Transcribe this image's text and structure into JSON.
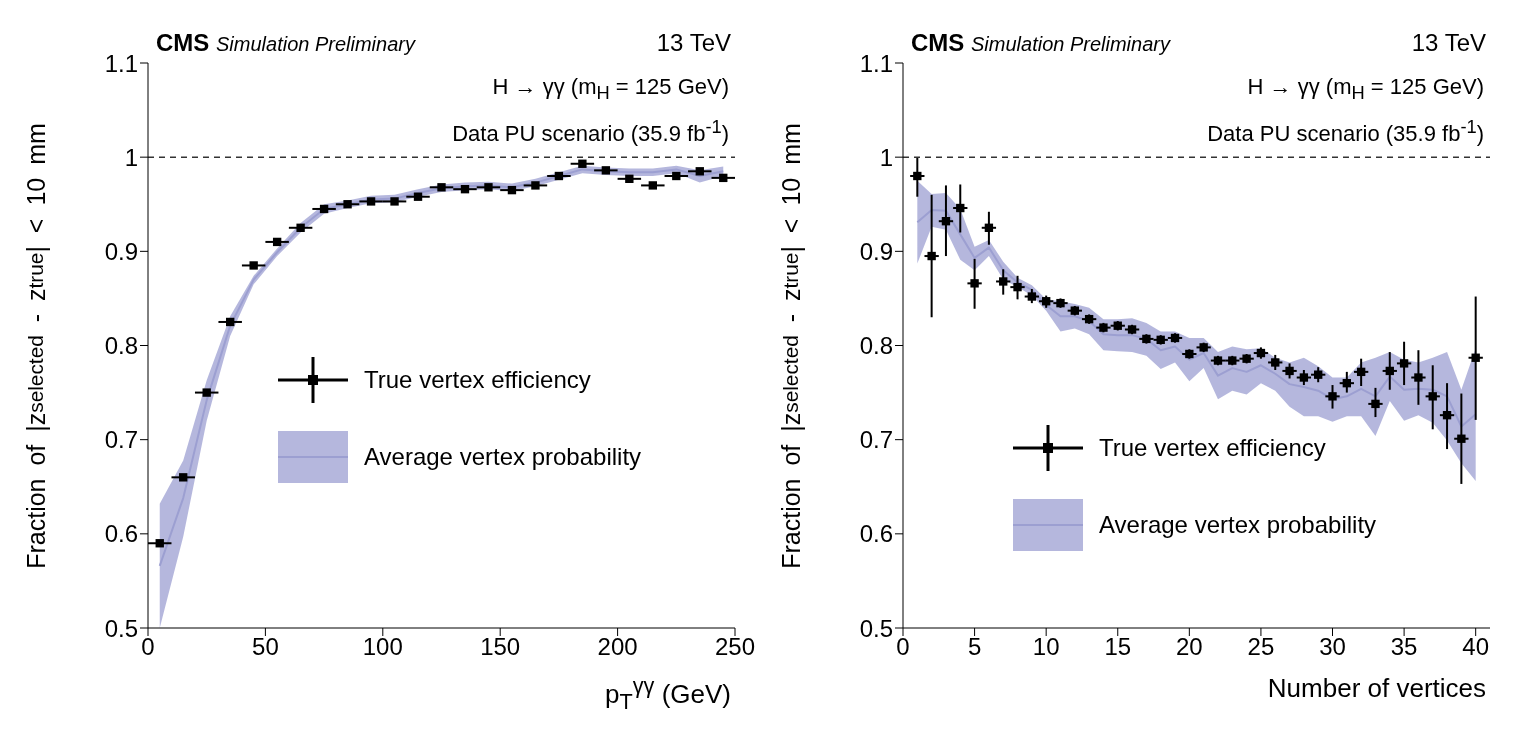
{
  "chart_data": [
    {
      "type": "scatter",
      "title": "CMS",
      "subtitle": "Simulation Preliminary",
      "xlabel": "p$_{T}$$^{γγ}$ (GeV)",
      "ylabel": "Fraction of |z$_{selected}$ - z$_{true}$| < 10 mm",
      "annotations": [
        "13 TeV",
        "H → γγ (m$_{H}$ = 125 GeV)",
        "Data PU scenario (35.9 fb$^{-1}$)"
      ],
      "x": [
        5,
        15,
        25,
        35,
        45,
        55,
        65,
        75,
        85,
        95,
        105,
        115,
        125,
        135,
        145,
        155,
        165,
        175,
        185,
        195,
        205,
        215,
        225,
        235,
        245
      ],
      "series": [
        {
          "name": "True vertex efficiency",
          "color": "#000000",
          "marker": "square",
          "values": [
            0.59,
            0.66,
            0.75,
            0.825,
            0.885,
            0.91,
            0.925,
            0.945,
            0.95,
            0.953,
            0.953,
            0.958,
            0.968,
            0.966,
            0.968,
            0.965,
            0.97,
            0.98,
            0.993,
            0.986,
            0.977,
            0.97,
            0.98,
            0.985,
            0.978
          ],
          "xerrors": [
            5,
            5,
            5,
            5,
            5,
            5,
            5,
            5,
            5,
            5,
            5,
            5,
            5,
            5,
            5,
            5,
            5,
            5,
            5,
            5,
            5,
            5,
            5,
            5,
            5
          ]
        },
        {
          "name": "Average vertex probability",
          "type": "line",
          "marker": "none",
          "color": "#9c9fd1",
          "values": [
            0.566,
            0.638,
            0.742,
            0.821,
            0.87,
            0.899,
            0.925,
            0.945,
            0.95,
            0.955,
            0.956,
            0.962,
            0.967,
            0.969,
            0.97,
            0.968,
            0.973,
            0.98,
            0.987,
            0.985,
            0.984,
            0.984,
            0.987,
            0.98,
            0.985
          ],
          "lower": [
            0.5,
            0.597,
            0.72,
            0.81,
            0.865,
            0.895,
            0.92,
            0.94,
            0.946,
            0.951,
            0.952,
            0.958,
            0.963,
            0.965,
            0.966,
            0.964,
            0.969,
            0.976,
            0.983,
            0.981,
            0.98,
            0.98,
            0.983,
            0.973,
            0.98
          ],
          "upper": [
            0.632,
            0.678,
            0.763,
            0.831,
            0.874,
            0.903,
            0.93,
            0.95,
            0.954,
            0.959,
            0.96,
            0.966,
            0.971,
            0.973,
            0.974,
            0.972,
            0.977,
            0.984,
            0.991,
            0.989,
            0.988,
            0.988,
            0.991,
            0.986,
            0.99
          ]
        }
      ],
      "xlim": [
        0,
        250
      ],
      "xticks": [
        0,
        50,
        100,
        150,
        200,
        250
      ],
      "ylim": [
        0.5,
        1.1
      ],
      "yticks": [
        0.5,
        0.6,
        0.7,
        0.8,
        0.9,
        1,
        1.1
      ],
      "ref_lines": [
        {
          "axis": "y",
          "value": 1,
          "line_style": "dashed",
          "color": "#333333"
        }
      ],
      "grid": false,
      "legend": "center"
    },
    {
      "type": "scatter",
      "title": "CMS",
      "subtitle": "Simulation Preliminary",
      "xlabel": "Number of vertices",
      "ylabel": "Fraction of |z$_{selected}$ - z$_{true}$| < 10 mm",
      "annotations": [
        "13 TeV",
        "H → γγ (m$_{H}$ = 125 GeV)",
        "Data PU scenario (35.9 fb$^{-1}$)"
      ],
      "x": [
        1,
        2,
        3,
        4,
        5,
        6,
        7,
        8,
        9,
        10,
        11,
        12,
        13,
        14,
        15,
        16,
        17,
        18,
        19,
        20,
        21,
        22,
        23,
        24,
        25,
        26,
        27,
        28,
        29,
        30,
        31,
        32,
        33,
        34,
        35,
        36,
        37,
        38,
        39,
        40
      ],
      "series": [
        {
          "name": "True vertex efficiency",
          "color": "#000000",
          "marker": "square",
          "values": [
            0.98,
            0.895,
            0.932,
            0.946,
            0.866,
            0.925,
            0.868,
            0.862,
            0.852,
            0.847,
            0.845,
            0.837,
            0.828,
            0.819,
            0.821,
            0.817,
            0.807,
            0.806,
            0.808,
            0.791,
            0.798,
            0.784,
            0.784,
            0.786,
            0.792,
            0.782,
            0.773,
            0.766,
            0.769,
            0.746,
            0.76,
            0.772,
            0.738,
            0.773,
            0.781,
            0.766,
            0.746,
            0.726,
            0.701,
            0.787
          ],
          "errors": [
            [
              0.958,
              1.0
            ],
            [
              0.83,
              0.96
            ],
            [
              0.895,
              0.97
            ],
            [
              0.92,
              0.971
            ],
            [
              0.839,
              0.892
            ],
            [
              0.907,
              0.942
            ],
            [
              0.854,
              0.881
            ],
            [
              0.849,
              0.874
            ],
            [
              0.845,
              0.86
            ],
            [
              0.84,
              0.853
            ],
            0.005,
            0.005,
            0.005,
            0.005,
            0.005,
            0.005,
            0.005,
            0.005,
            0.005,
            0.005,
            0.005,
            0.005,
            0.005,
            0.005,
            0.006,
            0.008,
            0.008,
            0.008,
            0.008,
            [
              0.733,
              0.758
            ],
            [
              0.75,
              0.772
            ],
            [
              0.757,
              0.786
            ],
            [
              0.724,
              0.755
            ],
            [
              0.753,
              0.793
            ],
            [
              0.758,
              0.804
            ],
            [
              0.737,
              0.795
            ],
            [
              0.711,
              0.779
            ],
            [
              0.69,
              0.76
            ],
            [
              0.653,
              0.749
            ],
            [
              0.721,
              0.852
            ]
          ],
          "xerrors": [
            0.5,
            0.5,
            0.5,
            0.5,
            0.5,
            0.5,
            0.5,
            0.5,
            0.5,
            0.5,
            0.5,
            0.5,
            0.5,
            0.5,
            0.5,
            0.5,
            0.5,
            0.5,
            0.5,
            0.5,
            0.5,
            0.5,
            0.5,
            0.5,
            0.5,
            0.5,
            0.5,
            0.5,
            0.5,
            0.5,
            0.5,
            0.5,
            0.5,
            0.5,
            0.5,
            0.5,
            0.5,
            0.5,
            0.5,
            0.5
          ]
        },
        {
          "name": "Average vertex probability",
          "type": "line",
          "marker": "none",
          "color": "#9c9fd1",
          "values": [
            0.931,
            0.944,
            0.943,
            0.918,
            0.893,
            0.904,
            0.88,
            0.867,
            0.859,
            0.843,
            0.831,
            0.831,
            0.826,
            0.812,
            0.811,
            0.811,
            0.807,
            0.795,
            0.799,
            0.785,
            0.792,
            0.768,
            0.776,
            0.772,
            0.779,
            0.77,
            0.759,
            0.756,
            0.752,
            0.743,
            0.746,
            0.754,
            0.746,
            0.767,
            0.753,
            0.754,
            0.753,
            0.746,
            0.714,
            0.727
          ],
          "lower": [
            0.887,
            0.926,
            0.923,
            0.891,
            0.88,
            0.895,
            0.87,
            0.862,
            0.853,
            0.837,
            0.815,
            0.818,
            0.812,
            0.795,
            0.794,
            0.793,
            0.789,
            0.775,
            0.782,
            0.762,
            0.776,
            0.743,
            0.752,
            0.748,
            0.76,
            0.752,
            0.735,
            0.725,
            0.725,
            0.719,
            0.725,
            0.725,
            0.704,
            0.741,
            0.72,
            0.726,
            0.718,
            0.699,
            0.675,
            0.656
          ],
          "upper": [
            0.975,
            0.961,
            0.962,
            0.945,
            0.905,
            0.912,
            0.889,
            0.872,
            0.864,
            0.849,
            0.847,
            0.844,
            0.84,
            0.828,
            0.828,
            0.829,
            0.824,
            0.815,
            0.815,
            0.808,
            0.808,
            0.793,
            0.799,
            0.796,
            0.797,
            0.787,
            0.782,
            0.787,
            0.778,
            0.766,
            0.766,
            0.782,
            0.787,
            0.793,
            0.785,
            0.782,
            0.787,
            0.793,
            0.753,
            0.797
          ]
        }
      ],
      "xlim": [
        0,
        41
      ],
      "xticks": [
        0,
        5,
        10,
        15,
        20,
        25,
        30,
        35,
        40
      ],
      "ylim": [
        0.5,
        1.1
      ],
      "yticks": [
        0.5,
        0.6,
        0.7,
        0.8,
        0.9,
        1,
        1.1
      ],
      "ref_lines": [
        {
          "axis": "y",
          "value": 1,
          "line_style": "dashed",
          "color": "#333333"
        }
      ],
      "grid": false,
      "legend": "bottom left"
    }
  ]
}
